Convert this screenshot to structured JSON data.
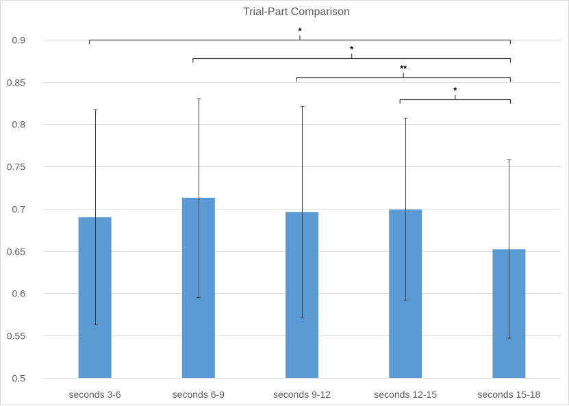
{
  "chart_data": {
    "type": "bar",
    "title": "Trial-Part Comparison",
    "xlabel": "",
    "ylabel": "",
    "ylim": [
      0.5,
      0.92
    ],
    "yticks": [
      "0.5",
      "0.55",
      "0.6",
      "0.65",
      "0.7",
      "0.75",
      "0.8",
      "0.85",
      "0.9"
    ],
    "grid": true,
    "legend": "none",
    "categories": [
      "seconds  3-6",
      "seconds  6-9",
      "seconds  9-12",
      "seconds  12-15",
      "seconds  15-18"
    ],
    "values": [
      0.69,
      0.713,
      0.696,
      0.699,
      0.652
    ],
    "error_high": [
      0.817,
      0.83,
      0.821,
      0.807,
      0.758
    ],
    "error_low": [
      0.563,
      0.595,
      0.571,
      0.592,
      0.547
    ],
    "bar_color": "#5b9bd5",
    "significance": [
      {
        "from": 0,
        "to": 4,
        "label": "*",
        "level": 0.9
      },
      {
        "from": 1,
        "to": 4,
        "label": "*",
        "level": 0.878
      },
      {
        "from": 2,
        "to": 4,
        "label": "**",
        "level": 0.855
      },
      {
        "from": 3,
        "to": 4,
        "label": "*",
        "level": 0.829
      }
    ]
  }
}
